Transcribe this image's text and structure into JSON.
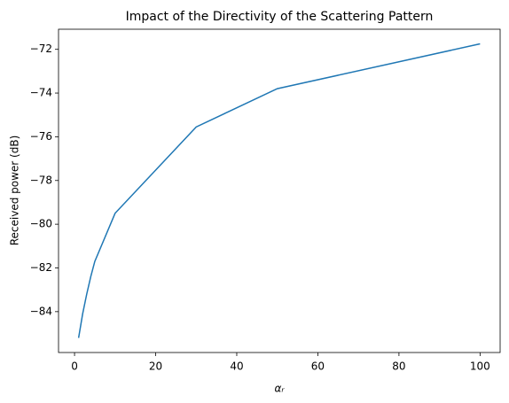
{
  "chart_data": {
    "type": "line",
    "title": "Impact of the Directivity of the Scattering Pattern",
    "xlabel": "αᵣ",
    "ylabel": "Received power (dB)",
    "x": [
      1,
      2,
      3,
      4,
      5,
      10,
      30,
      50,
      100
    ],
    "series": [
      {
        "color": "#1f77b4",
        "values": [
          -85.2,
          -84.1,
          -83.2,
          -82.4,
          -81.7,
          -79.5,
          -75.55,
          -73.8,
          -71.75
        ]
      }
    ],
    "xlim": [
      -3.95,
      104.95
    ],
    "xticks": [
      0,
      20,
      40,
      60,
      80,
      100
    ],
    "ylim": [
      -85.87,
      -71.08
    ],
    "yticks": [
      {
        "value": -84,
        "label": "−84"
      },
      {
        "value": -82,
        "label": "−82"
      },
      {
        "value": -80,
        "label": "−80"
      },
      {
        "value": -78,
        "label": "−78"
      },
      {
        "value": -76,
        "label": "−76"
      },
      {
        "value": -74,
        "label": "−74"
      },
      {
        "value": -72,
        "label": "−72"
      }
    ],
    "grid": false
  }
}
